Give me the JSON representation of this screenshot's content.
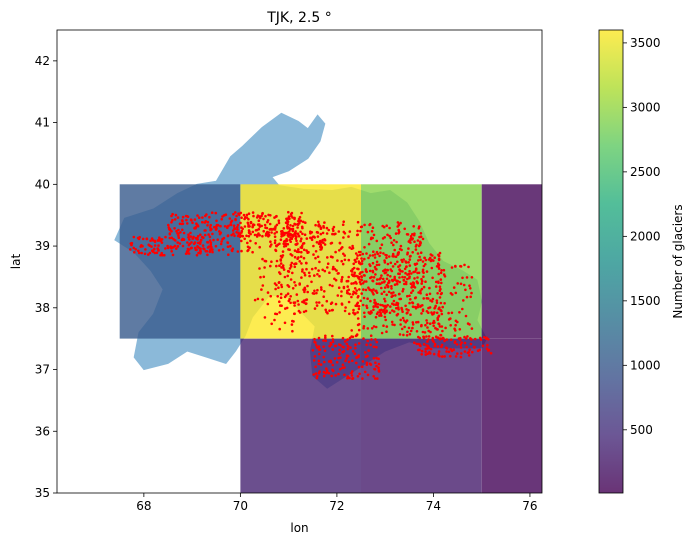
{
  "chart_data": {
    "type": "heatmap",
    "title": "TJK, 2.5 °",
    "xlabel": "lon",
    "ylabel": "lat",
    "xlim": [
      66.2,
      76.25
    ],
    "ylim": [
      35,
      42.5
    ],
    "xticks": [
      68,
      70,
      72,
      74,
      76
    ],
    "yticks": [
      35,
      36,
      37,
      38,
      39,
      40,
      41,
      42
    ],
    "grid": false,
    "colorbar": {
      "label": "Number of glaciers",
      "min": 10,
      "max": 3600,
      "ticks": [
        500,
        1000,
        1500,
        2000,
        2500,
        3000,
        3500
      ],
      "colormap": "viridis",
      "alpha": 0.8
    },
    "cells": [
      {
        "lon": [
          67.5,
          70.0
        ],
        "lat": [
          37.5,
          40.0
        ],
        "value": 1030
      },
      {
        "lon": [
          70.0,
          72.5
        ],
        "lat": [
          37.5,
          40.0
        ],
        "value": 3600
      },
      {
        "lon": [
          72.5,
          75.0
        ],
        "lat": [
          37.5,
          40.0
        ],
        "value": 2950
      },
      {
        "lon": [
          75.0,
          77.5
        ],
        "lat": [
          37.5,
          40.0
        ],
        "value": 60
      },
      {
        "lon": [
          70.0,
          72.5
        ],
        "lat": [
          35.0,
          37.5
        ],
        "value": 370
      },
      {
        "lon": [
          72.5,
          75.0
        ],
        "lat": [
          35.0,
          37.5
        ],
        "value": 300
      },
      {
        "lon": [
          75.0,
          77.5
        ],
        "lat": [
          35.0,
          37.5
        ],
        "value": 40
      }
    ],
    "country_outline": {
      "name": "TJK",
      "color": "#8bb9d9",
      "lonlat": [
        [
          69.5,
          40.05
        ],
        [
          69.8,
          40.45
        ],
        [
          70.05,
          40.62
        ],
        [
          70.45,
          40.92
        ],
        [
          70.85,
          41.15
        ],
        [
          71.2,
          41.02
        ],
        [
          71.4,
          40.9
        ],
        [
          71.6,
          41.12
        ],
        [
          71.75,
          40.98
        ],
        [
          71.65,
          40.7
        ],
        [
          71.4,
          40.42
        ],
        [
          71.0,
          40.22
        ],
        [
          70.65,
          40.12
        ],
        [
          70.8,
          39.98
        ],
        [
          71.3,
          39.92
        ],
        [
          71.9,
          39.9
        ],
        [
          72.3,
          39.95
        ],
        [
          72.7,
          39.85
        ],
        [
          73.1,
          39.9
        ],
        [
          73.45,
          39.7
        ],
        [
          73.7,
          39.4
        ],
        [
          73.9,
          39.05
        ],
        [
          74.2,
          38.75
        ],
        [
          74.6,
          38.6
        ],
        [
          74.9,
          38.45
        ],
        [
          75.0,
          38.1
        ],
        [
          74.9,
          37.8
        ],
        [
          75.1,
          37.5
        ],
        [
          75.0,
          37.35
        ],
        [
          74.6,
          37.35
        ],
        [
          74.0,
          37.35
        ],
        [
          73.5,
          37.45
        ],
        [
          73.0,
          37.3
        ],
        [
          72.6,
          37.1
        ],
        [
          72.2,
          36.9
        ],
        [
          71.8,
          36.7
        ],
        [
          71.5,
          36.9
        ],
        [
          71.45,
          37.3
        ],
        [
          71.55,
          37.7
        ],
        [
          71.3,
          37.9
        ],
        [
          70.95,
          38.2
        ],
        [
          70.6,
          38.2
        ],
        [
          70.25,
          37.85
        ],
        [
          70.1,
          37.55
        ],
        [
          69.9,
          37.3
        ],
        [
          69.7,
          37.1
        ],
        [
          69.3,
          37.2
        ],
        [
          68.9,
          37.3
        ],
        [
          68.5,
          37.1
        ],
        [
          68.0,
          37.0
        ],
        [
          67.8,
          37.2
        ],
        [
          67.9,
          37.6
        ],
        [
          68.2,
          37.9
        ],
        [
          68.4,
          38.3
        ],
        [
          68.15,
          38.6
        ],
        [
          67.8,
          38.9
        ],
        [
          67.4,
          39.1
        ],
        [
          67.6,
          39.45
        ],
        [
          68.2,
          39.6
        ],
        [
          68.7,
          39.85
        ],
        [
          69.1,
          40.0
        ],
        [
          69.5,
          40.05
        ]
      ]
    },
    "glacier_marker_color": "#ff0000",
    "glacier_clusters": [
      {
        "lon": [
          67.7,
          69.8
        ],
        "lat": [
          38.85,
          39.15
        ],
        "n": 160
      },
      {
        "lon": [
          68.5,
          71.3
        ],
        "lat": [
          39.15,
          39.55
        ],
        "n": 230
      },
      {
        "lon": [
          69.8,
          71.8
        ],
        "lat": [
          38.9,
          39.4
        ],
        "n": 120
      },
      {
        "lon": [
          70.8,
          73.8
        ],
        "lat": [
          37.9,
          39.4
        ],
        "n": 520
      },
      {
        "lon": [
          72.3,
          74.2
        ],
        "lat": [
          37.55,
          38.9
        ],
        "n": 330
      },
      {
        "lon": [
          70.3,
          71.1
        ],
        "lat": [
          37.6,
          38.8
        ],
        "n": 50
      },
      {
        "lon": [
          71.5,
          72.9
        ],
        "lat": [
          36.85,
          37.55
        ],
        "n": 150
      },
      {
        "lon": [
          73.6,
          75.2
        ],
        "lat": [
          37.2,
          37.55
        ],
        "n": 110
      },
      {
        "lon": [
          74.0,
          74.8
        ],
        "lat": [
          37.6,
          38.7
        ],
        "n": 60
      }
    ]
  }
}
